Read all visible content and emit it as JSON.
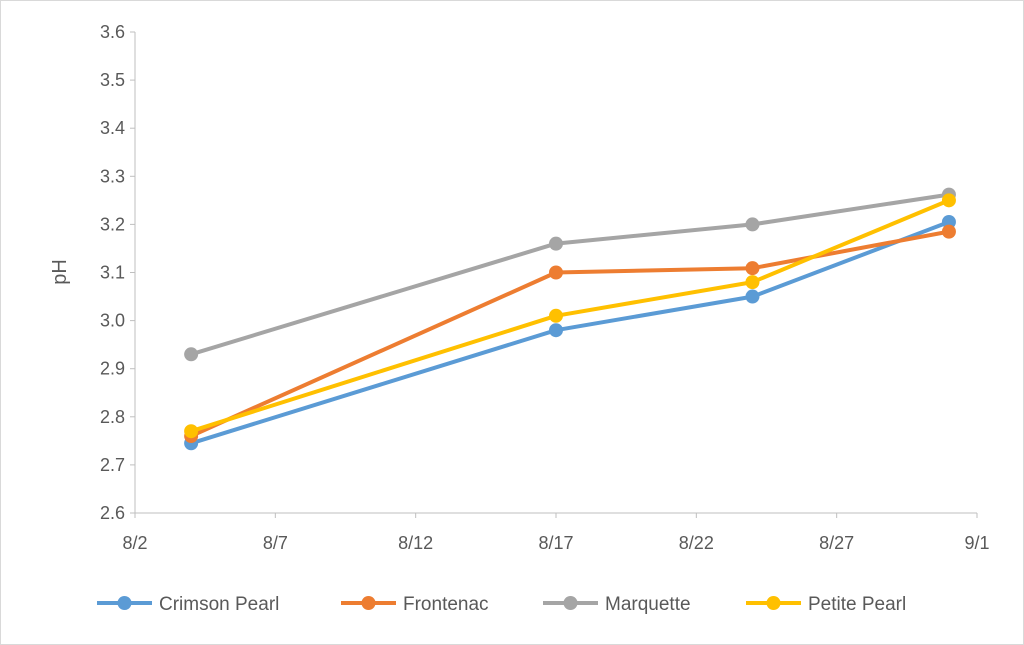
{
  "chart_data": {
    "type": "line",
    "title": "",
    "xlabel": "",
    "ylabel": "pH",
    "x_ticks": [
      "8/2",
      "8/7",
      "8/12",
      "8/17",
      "8/22",
      "8/27",
      "9/1"
    ],
    "x_tick_dates": [
      "2019-08-02",
      "2019-08-07",
      "2019-08-12",
      "2019-08-17",
      "2019-08-22",
      "2019-08-27",
      "2019-09-01"
    ],
    "xlim": [
      "2019-08-02",
      "2019-09-01"
    ],
    "y_ticks": [
      "2.6",
      "2.7",
      "2.8",
      "2.9",
      "3.0",
      "3.1",
      "3.2",
      "3.3",
      "3.4",
      "3.5",
      "3.6"
    ],
    "ylim": [
      2.6,
      3.6
    ],
    "grid": false,
    "legend_position": "bottom",
    "x": [
      "2019-08-04",
      "2019-08-17",
      "2019-08-24",
      "2019-08-31"
    ],
    "series": [
      {
        "name": "Crimson Pearl",
        "color": "#5B9BD5",
        "values": [
          2.745,
          2.98,
          3.05,
          3.205
        ]
      },
      {
        "name": "Frontenac",
        "color": "#ED7D31",
        "values": [
          2.76,
          3.1,
          3.109,
          3.185
        ]
      },
      {
        "name": "Marquette",
        "color": "#A5A5A5",
        "values": [
          2.93,
          3.16,
          3.2,
          3.262
        ]
      },
      {
        "name": "Petite Pearl",
        "color": "#FFC000",
        "values": [
          2.77,
          3.01,
          3.08,
          3.25
        ]
      }
    ]
  }
}
